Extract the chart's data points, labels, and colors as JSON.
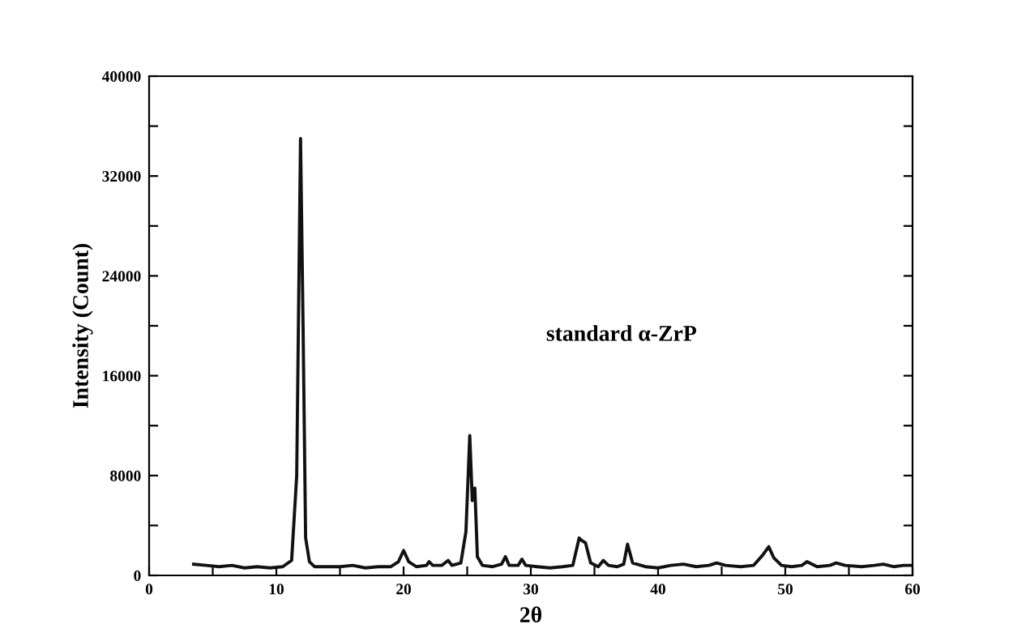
{
  "chart_data": {
    "type": "line",
    "xlabel": "2θ",
    "ylabel": "Intensity (Count)",
    "annotations": [
      "standard α-ZrP"
    ],
    "xlim": [
      0,
      60
    ],
    "ylim": [
      0,
      40000
    ],
    "xticks": [
      0,
      {
        "value": 5,
        "label": null
      },
      10,
      {
        "value": 15,
        "label": null
      },
      20,
      {
        "value": 25,
        "label": null
      },
      30,
      {
        "value": 35,
        "label": null
      },
      40,
      {
        "value": 45,
        "label": null
      },
      50,
      {
        "value": 55,
        "label": null
      },
      60
    ],
    "yticks": [
      0,
      {
        "value": 4000,
        "label": null
      },
      8000,
      {
        "value": 12000,
        "label": null
      },
      16000,
      {
        "value": 20000,
        "label": null
      },
      24000,
      {
        "value": 28000,
        "label": null
      },
      32000,
      {
        "value": 36000,
        "label": null
      },
      40000
    ],
    "grid": false,
    "marker": "none",
    "line_style": "solid",
    "series": [
      {
        "color": "#111111",
        "x": [
          3.5,
          4.5,
          5.5,
          6.5,
          7.5,
          8.5,
          9.5,
          10.5,
          11.2,
          11.6,
          11.9,
          12.1,
          12.3,
          12.6,
          13.0,
          14,
          15,
          16,
          17,
          18,
          19,
          19.6,
          20.0,
          20.4,
          21,
          21.8,
          22.0,
          22.3,
          23,
          23.5,
          23.8,
          24.5,
          24.9,
          25.2,
          25.4,
          25.6,
          25.8,
          26.2,
          27,
          27.7,
          28.0,
          28.3,
          29,
          29.3,
          29.6,
          30.5,
          31.5,
          32.5,
          33.3,
          33.8,
          34.0,
          34.3,
          34.7,
          35.3,
          35.7,
          36.1,
          36.8,
          37.3,
          37.6,
          38.0,
          39,
          40,
          41,
          42,
          43,
          44,
          44.6,
          45.3,
          46.5,
          47.5,
          48.2,
          48.7,
          49.1,
          49.7,
          50.5,
          51.3,
          51.7,
          52.5,
          53.5,
          54.0,
          54.7,
          56,
          57,
          57.7,
          58.5,
          59.3,
          60
        ],
        "values": [
          900,
          800,
          700,
          800,
          600,
          700,
          600,
          700,
          1200,
          8000,
          35000,
          20000,
          3000,
          1100,
          700,
          700,
          700,
          800,
          600,
          700,
          700,
          1100,
          2000,
          1100,
          700,
          800,
          1100,
          800,
          800,
          1200,
          800,
          1000,
          3500,
          11200,
          6000,
          7000,
          1500,
          800,
          700,
          900,
          1500,
          800,
          800,
          1300,
          800,
          700,
          600,
          700,
          800,
          3000,
          2800,
          2600,
          1000,
          700,
          1200,
          800,
          700,
          900,
          2500,
          1000,
          700,
          600,
          800,
          900,
          700,
          800,
          1000,
          800,
          700,
          800,
          1600,
          2300,
          1400,
          800,
          700,
          800,
          1100,
          700,
          800,
          1000,
          800,
          700,
          800,
          900,
          700,
          800,
          800
        ]
      }
    ]
  }
}
